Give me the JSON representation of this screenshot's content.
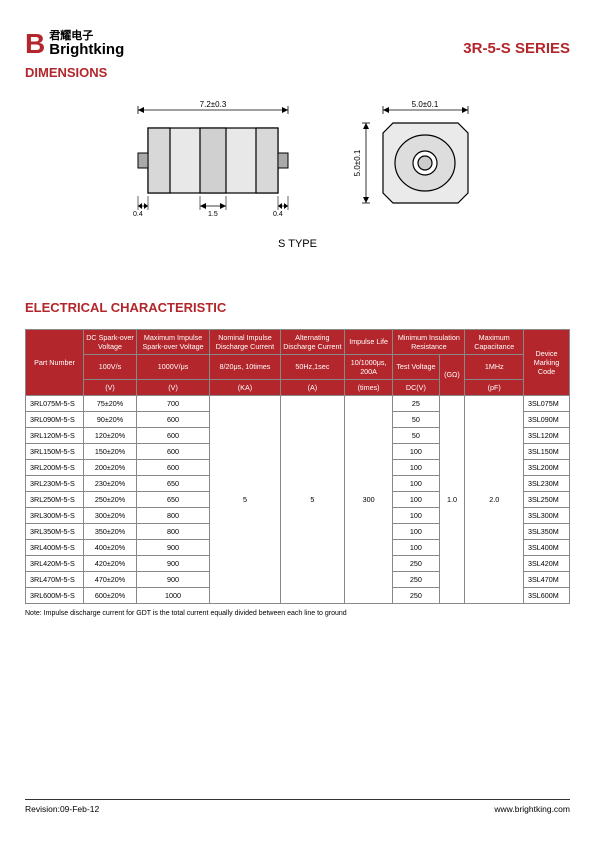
{
  "brand": {
    "cn": "君耀电子",
    "en": "Brightking",
    "logo_color": "#b3262b"
  },
  "series_title": "3R-5-S SERIES",
  "dimensions": {
    "title": "DIMENSIONS",
    "width": "7.2±0.3",
    "face_w": "5.0±0.1",
    "face_h": "5.0±0.1",
    "lead_a": "0.4",
    "mid": "1.5",
    "lead_b": "0.4",
    "type_label": "S  TYPE"
  },
  "elec": {
    "title": "ELECTRICAL CHARACTERISTIC",
    "headers": {
      "part_number": "Part Number",
      "dc_sparkover": "DC Spark-over Voltage",
      "max_imp_sparkover": "Maximum Impulse Spark-over Voltage",
      "nom_imp_discharge": "Nominal Impulse Discharge Current",
      "alt_discharge": "Alternating Discharge Current",
      "impulse_life": "Impulse Life",
      "min_insulation": "Minimum Insulation Resistance",
      "max_cap": "Maximum Capacitance",
      "marking": "Device Marking Code",
      "sub_100vs": "100V/s",
      "sub_1000vus": "1000V/μs",
      "sub_820": "8/20μs, 10times",
      "sub_50hz": "50Hz,1sec",
      "sub_101000": "10/1000μs, 200A",
      "sub_testv": "Test Voltage",
      "sub_gohm": "(GΩ)",
      "sub_1mhz": "1MHz",
      "u_v1": "(V)",
      "u_v2": "(V)",
      "u_ka": "(KA)",
      "u_a": "(A)",
      "u_times": "(times)",
      "u_dcv": "DC(V)",
      "u_pf": "(pF)"
    },
    "common": {
      "nom_imp": "5",
      "alt": "5",
      "life": "300",
      "insul": "1.0",
      "cap": "2.0"
    },
    "rows": [
      {
        "pn": "3RL075M-5-S",
        "dc": "75±20%",
        "imp": "700",
        "testv": "25",
        "mark": "3SL075M"
      },
      {
        "pn": "3RL090M-5-S",
        "dc": "90±20%",
        "imp": "600",
        "testv": "50",
        "mark": "3SL090M"
      },
      {
        "pn": "3RL120M-5-S",
        "dc": "120±20%",
        "imp": "600",
        "testv": "50",
        "mark": "3SL120M"
      },
      {
        "pn": "3RL150M-5-S",
        "dc": "150±20%",
        "imp": "600",
        "testv": "100",
        "mark": "3SL150M"
      },
      {
        "pn": "3RL200M-5-S",
        "dc": "200±20%",
        "imp": "600",
        "testv": "100",
        "mark": "3SL200M"
      },
      {
        "pn": "3RL230M-5-S",
        "dc": "230±20%",
        "imp": "650",
        "testv": "100",
        "mark": "3SL230M"
      },
      {
        "pn": "3RL250M-5-S",
        "dc": "250±20%",
        "imp": "650",
        "testv": "100",
        "mark": "3SL250M"
      },
      {
        "pn": "3RL300M-5-S",
        "dc": "300±20%",
        "imp": "800",
        "testv": "100",
        "mark": "3SL300M"
      },
      {
        "pn": "3RL350M-5-S",
        "dc": "350±20%",
        "imp": "800",
        "testv": "100",
        "mark": "3SL350M"
      },
      {
        "pn": "3RL400M-5-S",
        "dc": "400±20%",
        "imp": "900",
        "testv": "100",
        "mark": "3SL400M"
      },
      {
        "pn": "3RL420M-5-S",
        "dc": "420±20%",
        "imp": "900",
        "testv": "250",
        "mark": "3SL420M"
      },
      {
        "pn": "3RL470M-5-S",
        "dc": "470±20%",
        "imp": "900",
        "testv": "250",
        "mark": "3SL470M"
      },
      {
        "pn": "3RL600M-5-S",
        "dc": "600±20%",
        "imp": "1000",
        "testv": "250",
        "mark": "3SL600M"
      }
    ],
    "note": "Note:  Impulse discharge current for GDT is the total current equally divided between each line to ground"
  },
  "footer": {
    "revision": "Revision:09-Feb-12",
    "url": "www.brightking.com"
  }
}
